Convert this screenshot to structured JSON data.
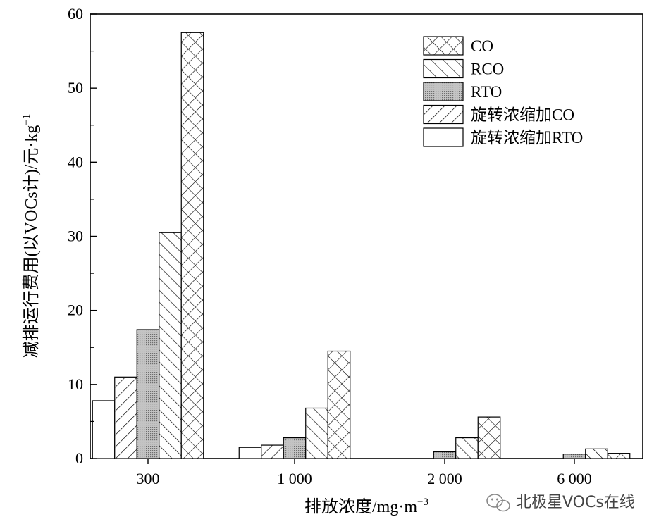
{
  "chart_data": {
    "type": "bar",
    "xlabel": "排放浓度/mg·m",
    "xlabel_sup": "−3",
    "ylabel": "减排运行费用(以VOCs计)/元·kg",
    "ylabel_sup": "−1",
    "categories": [
      "300",
      "1 000",
      "2 000",
      "6 000"
    ],
    "yticks": [
      "0",
      "10",
      "20",
      "30",
      "40",
      "50",
      "60"
    ],
    "ylim": [
      0,
      60
    ],
    "legend_position": "top-right",
    "grid": false,
    "series": [
      {
        "name": "旋转浓缩加RTO",
        "pattern": "none",
        "values": [
          7.8,
          1.5,
          null,
          null
        ]
      },
      {
        "name": "旋转浓缩加CO",
        "pattern": "fwd",
        "values": [
          11.0,
          1.8,
          null,
          null
        ]
      },
      {
        "name": "RTO",
        "pattern": "dots",
        "values": [
          17.4,
          2.8,
          0.9,
          0.6
        ]
      },
      {
        "name": "RCO",
        "pattern": "back",
        "values": [
          30.5,
          6.8,
          2.8,
          1.3
        ]
      },
      {
        "name": "CO",
        "pattern": "cross",
        "values": [
          57.5,
          14.5,
          5.6,
          0.7
        ]
      }
    ],
    "legend_order": [
      "CO",
      "RCO",
      "RTO",
      "旋转浓缩加CO",
      "旋转浓缩加RTO"
    ]
  },
  "watermark": {
    "text": "北极星VOCs在线",
    "icon": "wechat-icon"
  }
}
